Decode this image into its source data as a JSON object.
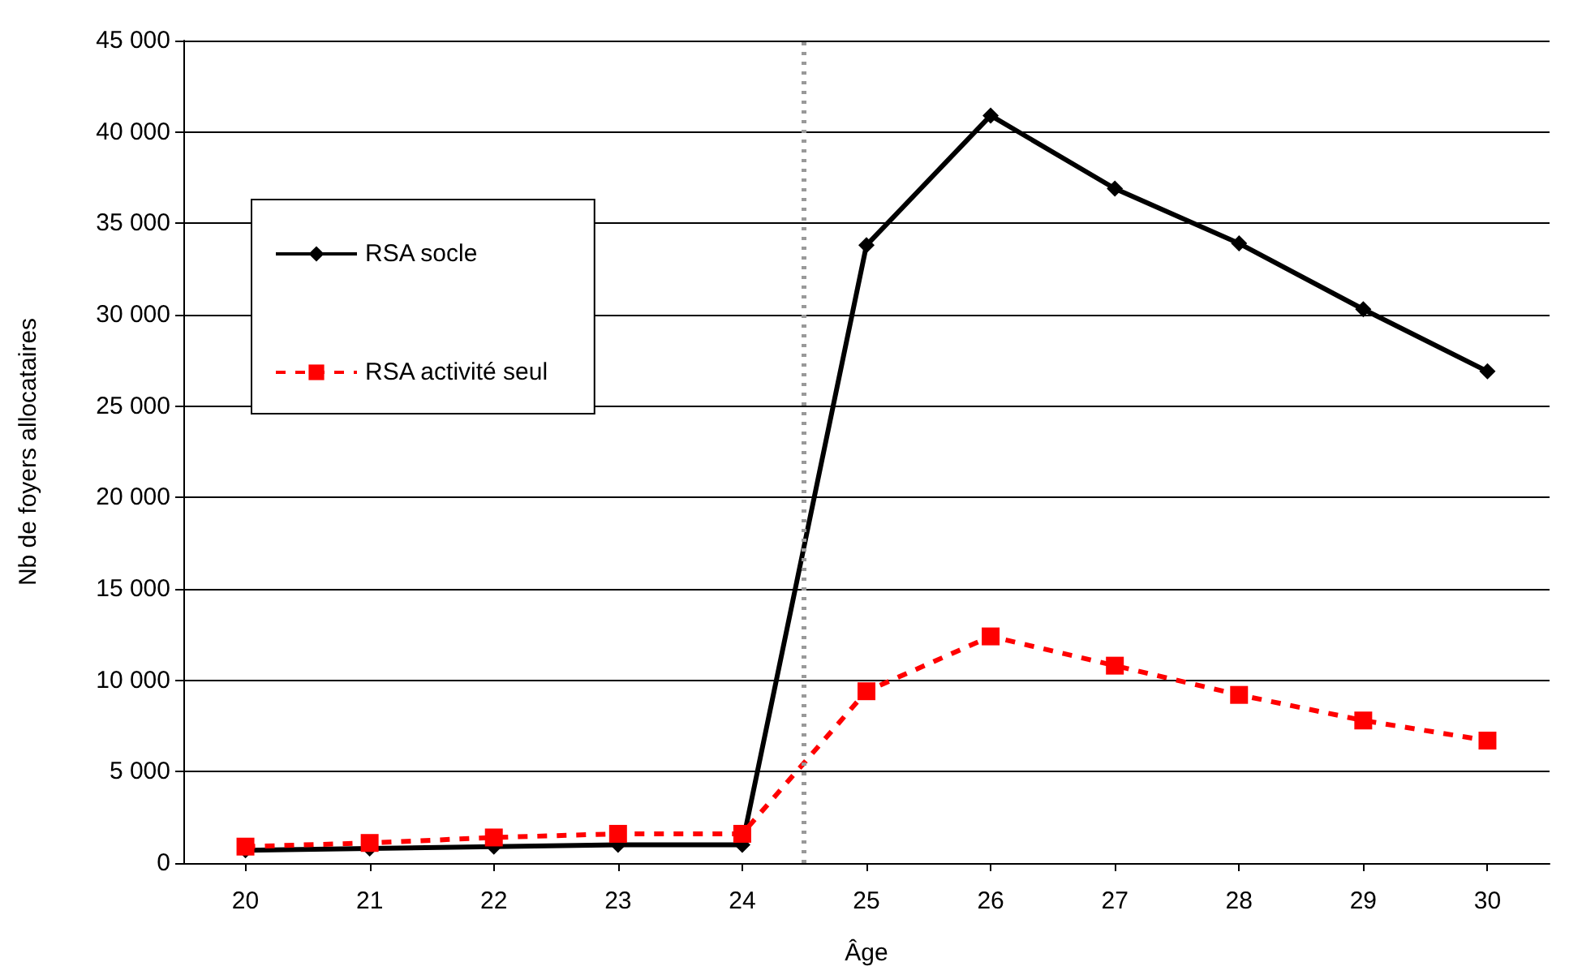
{
  "chart_data": {
    "type": "line",
    "xlabel": "Âge",
    "ylabel": "Nb de foyers allocataires",
    "x": [
      20,
      21,
      22,
      23,
      24,
      25,
      26,
      27,
      28,
      29,
      30
    ],
    "xlim": [
      19.5,
      30.5
    ],
    "xticks": [
      20,
      21,
      22,
      23,
      24,
      25,
      26,
      27,
      28,
      29,
      30
    ],
    "ylim": [
      0,
      45000
    ],
    "yticks": [
      {
        "value": 0,
        "label": "0"
      },
      {
        "value": 5000,
        "label": "5 000"
      },
      {
        "value": 10000,
        "label": "10 000"
      },
      {
        "value": 15000,
        "label": "15 000"
      },
      {
        "value": 20000,
        "label": "20 000"
      },
      {
        "value": 25000,
        "label": "25 000"
      },
      {
        "value": 30000,
        "label": "30 000"
      },
      {
        "value": 35000,
        "label": "35 000"
      },
      {
        "value": 40000,
        "label": "40 000"
      },
      {
        "value": 45000,
        "label": "45 000"
      }
    ],
    "grid": "y",
    "legend": "left",
    "series": [
      {
        "name": "RSA socle",
        "color": "#000000",
        "marker": "diamond",
        "line_style": "solid",
        "values": [
          700,
          800,
          900,
          1000,
          1000,
          33800,
          40900,
          36900,
          33900,
          30300,
          26900
        ]
      },
      {
        "name": "RSA activité seul",
        "color": "#ff0000",
        "marker": "square",
        "line_style": "dashed",
        "values": [
          900,
          1100,
          1400,
          1600,
          1600,
          9400,
          12400,
          10800,
          9200,
          7800,
          6700
        ]
      }
    ],
    "ref_lines": [
      {
        "axis": "x",
        "value": 24.5,
        "color": "#999999",
        "line_style": "dotted"
      }
    ]
  }
}
